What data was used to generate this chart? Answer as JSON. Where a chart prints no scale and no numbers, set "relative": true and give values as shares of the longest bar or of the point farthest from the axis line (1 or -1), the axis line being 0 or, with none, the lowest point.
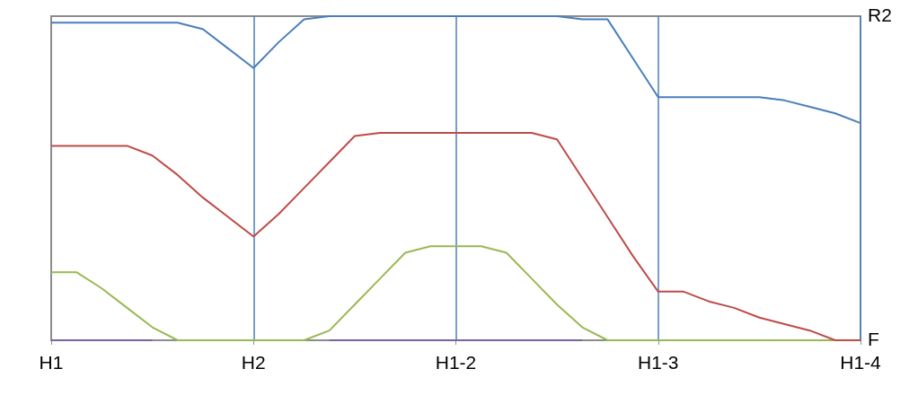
{
  "chart_data": {
    "type": "line",
    "relative": true,
    "categories": [
      "H1",
      null,
      null,
      null,
      null,
      null,
      null,
      null,
      "H2",
      null,
      null,
      null,
      null,
      null,
      null,
      null,
      "H1-2",
      null,
      null,
      null,
      null,
      null,
      null,
      null,
      "H1-3",
      null,
      null,
      null,
      null,
      null,
      null,
      null,
      "H1-4"
    ],
    "annotations": [
      "R2",
      "F"
    ],
    "grid": false,
    "marker": "none",
    "line_style": "solid",
    "ref_lines": [
      {
        "axis": "x",
        "value": "H2",
        "color": "#4a7ebb"
      },
      {
        "axis": "x",
        "value": "H1-2",
        "color": "#4a7ebb"
      },
      {
        "axis": "x",
        "value": "H1-3",
        "color": "#4a7ebb"
      },
      {
        "axis": "x",
        "value": "H1-4",
        "color": "#4a7ebb"
      }
    ],
    "series": [
      {
        "color": "#4a7ebb",
        "values": [
          0.98,
          0.98,
          0.98,
          0.98,
          0.98,
          0.98,
          0.96,
          0.9,
          0.84,
          0.92,
          0.99,
          1.0,
          1.0,
          1.0,
          1.0,
          1.0,
          1.0,
          1.0,
          1.0,
          1.0,
          1.0,
          0.99,
          0.99,
          0.87,
          0.75,
          0.75,
          0.75,
          0.75,
          0.75,
          0.74,
          0.72,
          0.7,
          0.67
        ]
      },
      {
        "color": "#be4b48",
        "values": [
          0.6,
          0.6,
          0.6,
          0.6,
          0.57,
          0.51,
          0.44,
          0.38,
          0.32,
          0.39,
          0.47,
          0.55,
          0.63,
          0.64,
          0.64,
          0.64,
          0.64,
          0.64,
          0.64,
          0.64,
          0.62,
          0.5,
          0.38,
          0.26,
          0.15,
          0.15,
          0.12,
          0.1,
          0.07,
          0.05,
          0.03,
          0.0,
          0.0
        ]
      },
      {
        "color": "#98b954",
        "values": [
          0.21,
          0.21,
          0.16,
          0.1,
          0.04,
          0,
          0,
          0,
          0,
          0,
          0,
          0.03,
          0.11,
          0.19,
          0.27,
          0.29,
          0.29,
          0.29,
          0.27,
          0.19,
          0.11,
          0.04,
          0,
          0,
          0,
          0,
          0,
          0,
          0,
          0,
          0,
          0,
          0
        ]
      },
      {
        "color": "#7d60a0",
        "values": [
          0,
          0,
          0,
          0,
          0,
          null,
          null,
          null,
          null,
          null,
          null,
          0,
          0,
          0,
          0,
          0,
          0,
          0,
          0,
          0,
          0,
          0,
          null,
          null,
          null,
          null,
          null,
          null,
          null,
          null,
          null,
          null,
          null
        ]
      }
    ]
  }
}
